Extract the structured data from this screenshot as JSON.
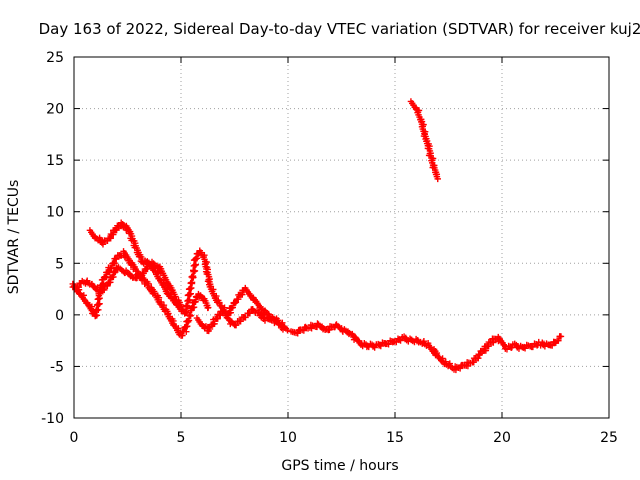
{
  "chart_data": {
    "type": "scatter",
    "title": "Day 163 of 2022, Sidereal Day-to-day VTEC variation (SDTVAR) for receiver kuj2",
    "xlabel": "GPS time / hours",
    "ylabel": "SDTVAR / TECUs",
    "xlim": [
      0,
      25
    ],
    "ylim": [
      -10,
      25
    ],
    "xticks": [
      0,
      5,
      10,
      15,
      20,
      25
    ],
    "yticks": [
      -10,
      -5,
      0,
      5,
      10,
      15,
      20,
      25
    ],
    "xtick_labels": [
      "0",
      "5",
      "10",
      "15",
      "20",
      "25"
    ],
    "ytick_labels": [
      "-10",
      "-5",
      "0",
      "5",
      "10",
      "15",
      "20",
      "25"
    ],
    "grid": true,
    "marker": "plus",
    "color": "#ff0000",
    "series": [
      {
        "name": "track-1",
        "x": [
          0.0,
          0.3,
          0.6,
          0.9,
          1.0,
          1.1,
          1.2,
          1.4,
          1.7,
          2.0,
          2.3,
          2.6,
          3.0,
          3.4,
          3.8,
          4.1,
          4.4,
          4.7,
          5.0,
          5.2,
          5.5,
          5.8,
          6.1,
          6.3
        ],
        "y": [
          2.8,
          2.0,
          1.2,
          0.3,
          -0.2,
          0.5,
          2.0,
          3.5,
          4.5,
          5.5,
          6.0,
          5.2,
          4.0,
          3.0,
          2.0,
          1.0,
          0.0,
          -1.0,
          -2.0,
          -1.5,
          0.5,
          2.0,
          1.5,
          0.5
        ]
      },
      {
        "name": "track-2",
        "x": [
          0.0,
          0.4,
          0.8,
          1.2,
          1.6,
          2.0,
          2.4,
          2.8,
          3.2,
          3.6,
          4.0,
          4.4,
          4.8,
          5.2,
          5.5,
          5.7,
          5.9,
          6.1,
          6.4,
          6.8,
          7.2,
          7.6,
          8.0,
          8.4,
          8.8,
          9.2,
          9.6,
          10.0
        ],
        "y": [
          2.5,
          3.2,
          3.0,
          2.2,
          3.0,
          4.5,
          4.2,
          3.5,
          4.0,
          5.0,
          4.5,
          3.0,
          1.5,
          0.0,
          3.0,
          5.5,
          6.2,
          5.5,
          2.5,
          1.0,
          0.0,
          1.5,
          2.5,
          1.5,
          0.5,
          -0.2,
          -1.0,
          -1.5
        ]
      },
      {
        "name": "track-3",
        "x": [
          0.8,
          1.0,
          1.2,
          1.4,
          1.6,
          1.8,
          2.0,
          2.2,
          2.4,
          2.6,
          2.8,
          3.0,
          3.2,
          3.4,
          3.6,
          3.8,
          4.0,
          4.2,
          4.4,
          4.6,
          4.8,
          5.0
        ],
        "y": [
          8.0,
          7.5,
          7.2,
          7.0,
          7.3,
          7.8,
          8.4,
          8.8,
          8.6,
          8.0,
          7.0,
          6.0,
          5.2,
          5.0,
          4.8,
          4.2,
          3.5,
          2.8,
          2.0,
          1.5,
          1.0,
          0.5
        ]
      },
      {
        "name": "track-4",
        "x": [
          5.8,
          6.0,
          6.2,
          6.4,
          6.6,
          6.8,
          7.0,
          7.2,
          7.5,
          7.8,
          8.1,
          8.4,
          8.7,
          9.0,
          9.3,
          9.6,
          9.9
        ],
        "y": [
          -0.5,
          -1.0,
          -1.5,
          -1.2,
          -0.5,
          0.0,
          0.3,
          -0.5,
          -1.0,
          -0.5,
          0.0,
          0.5,
          0.0,
          -0.5,
          -0.3,
          -0.8,
          -1.2
        ]
      },
      {
        "name": "track-5",
        "x": [
          10.2,
          10.6,
          11.0,
          11.4,
          11.8,
          12.2,
          12.6,
          13.0,
          13.4,
          13.8,
          14.2,
          14.6,
          15.0,
          15.4,
          15.8,
          16.2,
          16.6,
          17.0,
          17.4,
          17.8,
          18.2,
          18.6,
          19.0,
          19.4,
          19.8,
          20.2,
          20.6,
          21.0,
          21.4,
          21.8,
          22.2,
          22.6,
          22.8
        ],
        "y": [
          -1.8,
          -1.5,
          -1.2,
          -1.0,
          -1.5,
          -1.0,
          -1.5,
          -2.0,
          -2.8,
          -3.0,
          -3.0,
          -2.8,
          -2.5,
          -2.3,
          -2.5,
          -2.6,
          -3.0,
          -4.0,
          -4.8,
          -5.2,
          -5.0,
          -4.6,
          -3.8,
          -2.8,
          -2.2,
          -3.2,
          -3.0,
          -3.2,
          -3.0,
          -2.8,
          -3.0,
          -2.5,
          -2.0
        ]
      },
      {
        "name": "track-6",
        "x": [
          15.8,
          16.0,
          16.2,
          16.4,
          16.6,
          16.8,
          17.0
        ],
        "y": [
          20.5,
          20.0,
          19.0,
          17.5,
          16.0,
          14.5,
          13.2
        ]
      }
    ]
  }
}
